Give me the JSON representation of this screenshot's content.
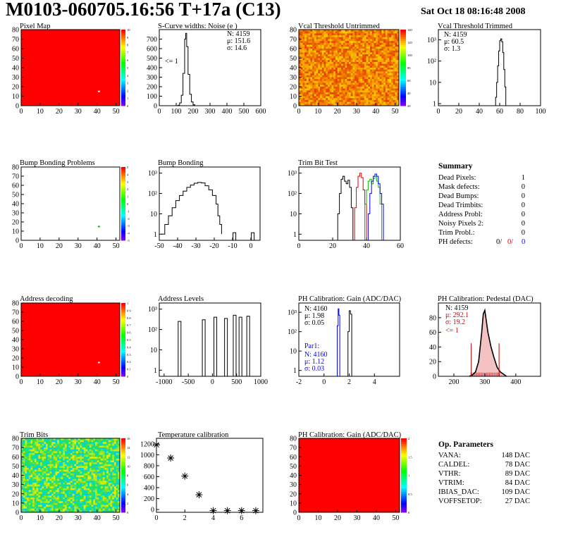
{
  "header": {
    "title": "M0103-060705.16:56 T+17a (C13)",
    "date": "Sat Oct 18 08:16:48 2008"
  },
  "colors": {
    "uniform_red": "#ff0000",
    "hist_line": "#000000",
    "series_red": "#e00000",
    "series_green": "#00c000",
    "series_blue": "#0000ff",
    "pedestal_fill": "#cc0000"
  },
  "chart_data": [
    {
      "id": "pixel-map",
      "type": "heatmap",
      "title": "Pixel Map",
      "xlim": [
        0,
        52
      ],
      "ylim": [
        0,
        80
      ],
      "xticks": [
        0,
        10,
        20,
        30,
        40,
        50
      ],
      "yticks": [
        0,
        10,
        20,
        30,
        40,
        50,
        60,
        70,
        80
      ],
      "fill": "uniform",
      "hot_pixels": [
        [
          41,
          15
        ]
      ],
      "palette_labels": [
        "10",
        "9",
        "8",
        "7",
        "6",
        "5",
        "4",
        "3",
        "2",
        "1",
        "0"
      ]
    },
    {
      "id": "scurve-noise",
      "type": "histogram",
      "title": "S-Curve widths: Noise (e )",
      "xlim": [
        0,
        600
      ],
      "ylim": [
        0,
        800
      ],
      "xticks": [
        0,
        100,
        200,
        300,
        400,
        500,
        600
      ],
      "yticks": [
        0,
        100,
        200,
        300,
        400,
        500,
        600,
        700
      ],
      "points": [
        [
          90,
          0
        ],
        [
          110,
          5
        ],
        [
          120,
          30
        ],
        [
          130,
          110
        ],
        [
          140,
          340
        ],
        [
          150,
          700
        ],
        [
          156,
          760
        ],
        [
          162,
          620
        ],
        [
          170,
          330
        ],
        [
          180,
          120
        ],
        [
          190,
          40
        ],
        [
          200,
          10
        ],
        [
          210,
          0
        ]
      ],
      "stats": [
        "N: 4159",
        "μ: 151.6",
        "σ: 14.6"
      ],
      "annotations": [
        "<= 1"
      ]
    },
    {
      "id": "vcal-untrimmed",
      "type": "heatmap",
      "title": "Vcal Threshold Untrimmed",
      "xlim": [
        0,
        52
      ],
      "ylim": [
        0,
        80
      ],
      "xticks": [
        0,
        10,
        20,
        30,
        40,
        50
      ],
      "yticks": [
        0,
        10,
        20,
        30,
        40,
        50,
        60,
        70,
        80
      ],
      "fill": "noisy",
      "palette": "warm",
      "palette_labels": [
        "140",
        "120",
        "100",
        "80",
        "60",
        "40",
        "20"
      ]
    },
    {
      "id": "vcal-trimmed",
      "type": "histogram",
      "title": "Vcal Threshold Trimmed",
      "xlim": [
        0,
        100
      ],
      "ylim": [
        0.8,
        3000
      ],
      "log": true,
      "xticks": [
        0,
        20,
        40,
        60,
        80,
        100
      ],
      "yticks": [
        1,
        10,
        100,
        1000
      ],
      "ytick_labels": [
        "1",
        "10",
        "10²",
        "10³"
      ],
      "points": [
        [
          55,
          0.8
        ],
        [
          56,
          2
        ],
        [
          57,
          10
        ],
        [
          58,
          60
        ],
        [
          59,
          300
        ],
        [
          60,
          900
        ],
        [
          61,
          1100
        ],
        [
          62,
          800
        ],
        [
          63,
          250
        ],
        [
          64,
          40
        ],
        [
          65,
          6
        ],
        [
          66,
          0.8
        ]
      ],
      "stats": [
        "N: 4159",
        "μ: 60.5",
        "σ: 1.3"
      ]
    },
    {
      "id": "bump-bonding-problems",
      "type": "heatmap",
      "title": "Bump Bonding Problems",
      "xlim": [
        0,
        52
      ],
      "ylim": [
        0,
        80
      ],
      "xticks": [
        0,
        10,
        20,
        30,
        40,
        50
      ],
      "yticks": [
        0,
        10,
        20,
        30,
        40,
        50,
        60,
        70,
        80
      ],
      "fill": "empty",
      "hot_pixels": [
        [
          41,
          15
        ]
      ],
      "palette_labels": [
        "5",
        "4",
        "3",
        "2",
        "1",
        "0",
        "-1",
        "-2",
        "-3",
        "-4",
        "-5"
      ]
    },
    {
      "id": "bump-bonding",
      "type": "histogram",
      "title": "Bump Bonding",
      "xlim": [
        -50,
        5
      ],
      "ylim": [
        0.5,
        2000
      ],
      "log": true,
      "xticks": [
        -50,
        -40,
        -30,
        -20,
        -10,
        0
      ],
      "yticks": [
        1,
        10,
        100,
        1000
      ],
      "ytick_labels": [
        "1",
        "10",
        "10²",
        "10³"
      ],
      "points": [
        [
          -49,
          1
        ],
        [
          -47,
          3
        ],
        [
          -45,
          8
        ],
        [
          -43,
          20
        ],
        [
          -41,
          45
        ],
        [
          -39,
          80
        ],
        [
          -37,
          130
        ],
        [
          -35,
          200
        ],
        [
          -33,
          260
        ],
        [
          -31,
          320
        ],
        [
          -29,
          350
        ],
        [
          -27,
          330
        ],
        [
          -25,
          240
        ],
        [
          -23,
          150
        ],
        [
          -21,
          80
        ],
        [
          -19,
          30
        ],
        [
          -18,
          8
        ],
        [
          -17,
          3
        ],
        [
          -16,
          1
        ]
      ],
      "isolated": [
        [
          -9,
          1
        ],
        [
          1,
          1
        ]
      ]
    },
    {
      "id": "trim-bit-test",
      "type": "line",
      "title": "Trim Bit Test",
      "xlim": [
        0,
        60
      ],
      "ylim": [
        0.5,
        2000
      ],
      "log": true,
      "xticks": [
        0,
        20,
        40,
        60
      ],
      "yticks": [
        1,
        10,
        100,
        1000
      ],
      "ytick_labels": [
        "1",
        "10",
        "10²",
        "10³"
      ],
      "series": [
        {
          "color": "#000000",
          "points": [
            [
              22,
              0.5
            ],
            [
              23,
              10
            ],
            [
              24,
              100
            ],
            [
              25,
              500
            ],
            [
              26,
              700
            ],
            [
              27,
              400
            ],
            [
              28,
              300
            ],
            [
              29,
              450
            ],
            [
              30,
              200
            ],
            [
              31,
              20
            ],
            [
              32,
              0.5
            ]
          ]
        },
        {
          "color": "#e00000",
          "points": [
            [
              32,
              0.5
            ],
            [
              33,
              20
            ],
            [
              34,
              200
            ],
            [
              35,
              700
            ],
            [
              36,
              1000
            ],
            [
              37,
              600
            ],
            [
              38,
              150
            ],
            [
              39,
              30
            ],
            [
              40,
              0.5
            ]
          ]
        },
        {
          "color": "#00c000",
          "points": [
            [
              0,
              0.5
            ],
            [
              38,
              0.5
            ],
            [
              39,
              30
            ],
            [
              40,
              150
            ],
            [
              41,
              400
            ],
            [
              42,
              500
            ],
            [
              43,
              300
            ],
            [
              44,
              550
            ],
            [
              45,
              700
            ],
            [
              46,
              400
            ],
            [
              47,
              200
            ],
            [
              48,
              30
            ],
            [
              49,
              0.5
            ],
            [
              60,
              0.5
            ]
          ]
        },
        {
          "color": "#0000ff",
          "points": [
            [
              40,
              0.5
            ],
            [
              41,
              10
            ],
            [
              42,
              100
            ],
            [
              43,
              400
            ],
            [
              44,
              700
            ],
            [
              45,
              900
            ],
            [
              46,
              700
            ],
            [
              47,
              300
            ],
            [
              48,
              100
            ],
            [
              49,
              30
            ],
            [
              50,
              0.5
            ]
          ]
        }
      ]
    },
    {
      "id": "address-decoding",
      "type": "heatmap",
      "title": "Address decoding",
      "xlim": [
        0,
        52
      ],
      "ylim": [
        0,
        80
      ],
      "xticks": [
        0,
        10,
        20,
        30,
        40,
        50
      ],
      "yticks": [
        0,
        10,
        20,
        30,
        40,
        50,
        60,
        70,
        80
      ],
      "fill": "uniform",
      "hot_pixels": [
        [
          41,
          15
        ]
      ],
      "palette_labels": [
        "1",
        "0.9",
        "0.8",
        "0.7",
        "0.6",
        "0.5",
        "0.4",
        "0.3",
        "0.2",
        "0.1",
        "0"
      ]
    },
    {
      "id": "address-levels",
      "type": "histogram",
      "title": "Address Levels",
      "xlim": [
        -1100,
        1000
      ],
      "ylim": [
        0.5,
        2000
      ],
      "log": true,
      "xticks": [
        -1000,
        -500,
        0,
        500,
        1000
      ],
      "yticks": [
        1,
        10,
        100,
        1000
      ],
      "ytick_labels": [
        "1",
        "10",
        "10²",
        "10³"
      ],
      "spikes": [
        [
          -680,
          250
        ],
        [
          -180,
          300
        ],
        [
          60,
          400
        ],
        [
          280,
          350
        ],
        [
          460,
          500
        ],
        [
          580,
          400
        ],
        [
          740,
          450
        ]
      ]
    },
    {
      "id": "ph-gain",
      "type": "histogram",
      "title": "PH Calibration: Gain (ADC/DAC)",
      "xlim": [
        -2,
        6
      ],
      "ylim": [
        0.5,
        3000
      ],
      "log": true,
      "xticks": [
        -2,
        0,
        2,
        4
      ],
      "yticks": [
        1,
        10,
        100,
        1000
      ],
      "ytick_labels": [
        "1",
        "10",
        "10²",
        "10³"
      ],
      "series": [
        {
          "color": "#000000",
          "points": [
            [
              1.8,
              0.5
            ],
            [
              1.9,
              100
            ],
            [
              2.0,
              1200
            ],
            [
              2.1,
              800
            ],
            [
              2.2,
              0.5
            ]
          ]
        },
        {
          "color": "#0000ff",
          "points": [
            [
              1.0,
              0.5
            ],
            [
              1.05,
              200
            ],
            [
              1.12,
              1500
            ],
            [
              1.18,
              700
            ],
            [
              1.25,
              0.5
            ]
          ]
        }
      ],
      "stats": [
        "N: 4160",
        "μ: 1.98",
        "σ: 0.05"
      ],
      "stats2_title": "Par1:",
      "stats2": [
        "N: 4160",
        "μ: 1.12",
        "σ: 0.03"
      ]
    },
    {
      "id": "ph-pedestal",
      "type": "histogram",
      "title": "PH Calibration: Pedestal (DAC)",
      "xlim": [
        150,
        480
      ],
      "ylim": [
        0,
        100
      ],
      "xticks": [
        200,
        300,
        400
      ],
      "yticks": [
        0,
        20,
        40,
        60,
        80
      ],
      "points": [
        [
          250,
          0
        ],
        [
          260,
          2
        ],
        [
          270,
          6
        ],
        [
          280,
          20
        ],
        [
          290,
          60
        ],
        [
          295,
          85
        ],
        [
          300,
          90
        ],
        [
          305,
          75
        ],
        [
          310,
          60
        ],
        [
          320,
          40
        ],
        [
          330,
          25
        ],
        [
          340,
          12
        ],
        [
          350,
          6
        ],
        [
          360,
          3
        ],
        [
          370,
          0
        ]
      ],
      "cut_lines": [
        256,
        346
      ],
      "stats": [
        "N: 4159",
        "μ: 292.1",
        "σ: 19.2"
      ],
      "annotations": [
        "<= 1"
      ]
    },
    {
      "id": "trim-bits",
      "type": "heatmap",
      "title": "Trim Bits",
      "xlim": [
        0,
        52
      ],
      "ylim": [
        0,
        80
      ],
      "xticks": [
        0,
        10,
        20,
        30,
        40,
        50
      ],
      "yticks": [
        0,
        10,
        20,
        30,
        40,
        50,
        60,
        70,
        80
      ],
      "fill": "noisy",
      "palette": "cool",
      "palette_labels": [
        "16",
        "14",
        "12",
        "10",
        "8",
        "6",
        "4",
        "2",
        "0"
      ]
    },
    {
      "id": "temperature-calibration",
      "type": "scatter",
      "title": "Temperature calibration",
      "xlim": [
        0,
        7.5
      ],
      "ylim": [
        -50,
        1300
      ],
      "xticks": [
        0,
        2,
        4,
        6
      ],
      "yticks": [
        0,
        200,
        400,
        600,
        800,
        1000,
        1200
      ],
      "points": [
        [
          0,
          1180
        ],
        [
          1,
          940
        ],
        [
          2,
          610
        ],
        [
          3,
          270
        ],
        [
          4,
          -20
        ],
        [
          5,
          -20
        ],
        [
          6,
          -20
        ],
        [
          7,
          -20
        ]
      ]
    },
    {
      "id": "ph-gain-map",
      "type": "heatmap",
      "title": "PH Calibration: Gain (ADC/DAC)",
      "xlim": [
        0,
        52
      ],
      "ylim": [
        0,
        80
      ],
      "xticks": [
        0,
        10,
        20,
        30,
        40,
        50
      ],
      "yticks": [
        0,
        10,
        20,
        30,
        40,
        50,
        60,
        70,
        80
      ],
      "fill": "uniform",
      "palette_labels": [
        "2",
        "1.5",
        "1",
        "0.5",
        "0"
      ]
    }
  ],
  "summary": {
    "title": "Summary",
    "rows": [
      {
        "label": "Dead Pixels:",
        "value": "1"
      },
      {
        "label": "Mask defects:",
        "value": "0"
      },
      {
        "label": "Dead Bumps:",
        "value": "0"
      },
      {
        "label": "Dead Trimbits:",
        "value": "0"
      },
      {
        "label": "Address Probl:",
        "value": "0"
      },
      {
        "label": "Noisy Pixels 2:",
        "value": "0"
      },
      {
        "label": "Trim Probl.:",
        "value": "0"
      }
    ],
    "ph_label": "PH defects:",
    "ph_values": [
      "0/",
      "0/",
      "0"
    ]
  },
  "op_params": {
    "title": "Op. Parameters",
    "rows": [
      {
        "label": "VANA:",
        "value": "148 DAC"
      },
      {
        "label": "CALDEL:",
        "value": "78 DAC"
      },
      {
        "label": "VTHR:",
        "value": "89 DAC"
      },
      {
        "label": "VTRIM:",
        "value": "84 DAC"
      },
      {
        "label": "IBIAS_DAC:",
        "value": "109 DAC"
      },
      {
        "label": "VOFFSETOP:",
        "value": "27 DAC"
      }
    ]
  }
}
